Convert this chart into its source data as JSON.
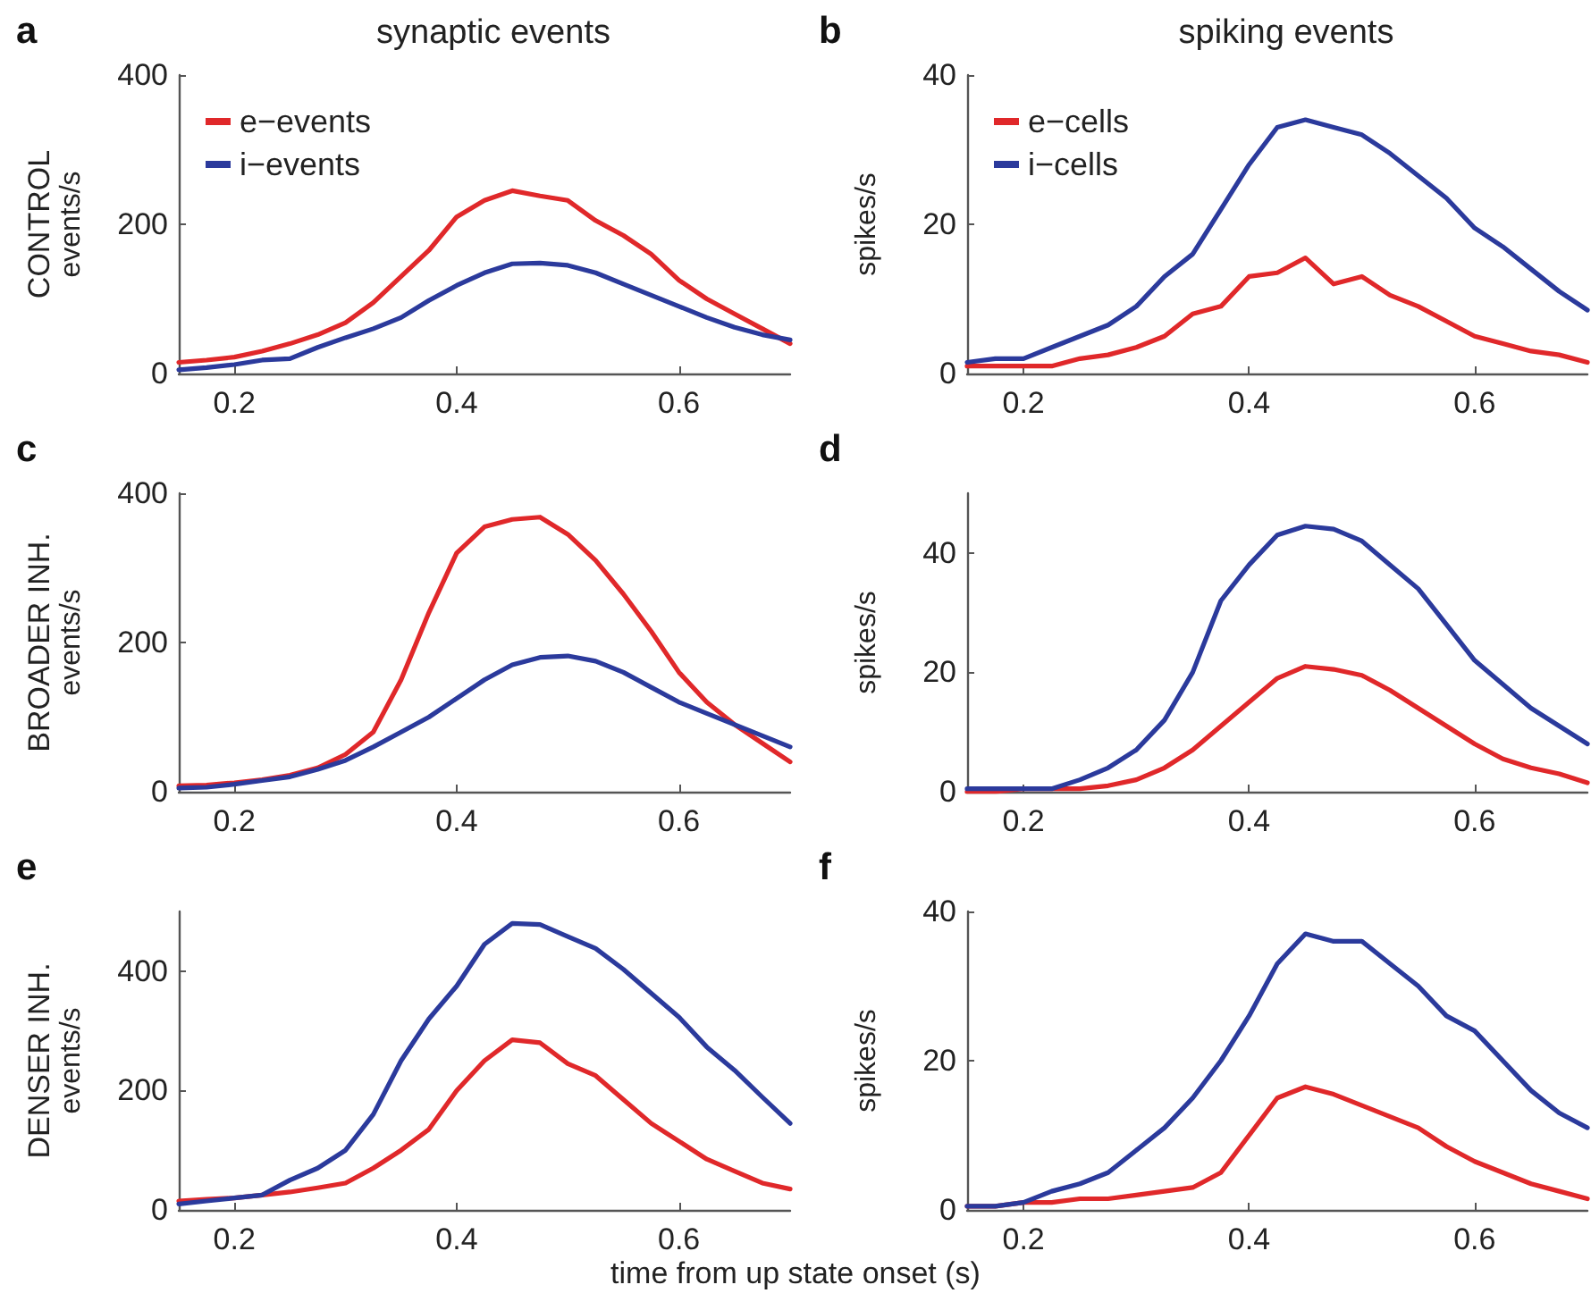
{
  "chart_data": [
    {
      "type": "line",
      "title": "a",
      "subtitle": "synaptic events",
      "annotations": [
        "CONTROL"
      ],
      "ylabel": "events/s",
      "xlim": [
        0.15,
        0.7
      ],
      "xticks": [
        0.2,
        0.4,
        0.6
      ],
      "ylim": [
        0,
        400
      ],
      "yticks": [
        0,
        200,
        400
      ],
      "legend": "top left",
      "marker": "none",
      "grid": false,
      "x": [
        0.15,
        0.175,
        0.2,
        0.225,
        0.25,
        0.275,
        0.3,
        0.325,
        0.35,
        0.375,
        0.4,
        0.425,
        0.45,
        0.475,
        0.5,
        0.525,
        0.55,
        0.575,
        0.6,
        0.625,
        0.65,
        0.675,
        0.7
      ],
      "series": [
        {
          "name": "e−events",
          "color": "#e0282a",
          "values": [
            15,
            18,
            22,
            30,
            40,
            52,
            68,
            95,
            130,
            165,
            210,
            232,
            245,
            238,
            232,
            205,
            185,
            160,
            125,
            100,
            80,
            60,
            40
          ]
        },
        {
          "name": "i−events",
          "color": "#2b3a9c",
          "values": [
            5,
            8,
            12,
            18,
            20,
            35,
            48,
            60,
            75,
            98,
            118,
            135,
            147,
            148,
            145,
            135,
            120,
            105,
            90,
            75,
            62,
            52,
            45
          ]
        }
      ]
    },
    {
      "type": "line",
      "title": "b",
      "subtitle": "spiking events",
      "ylabel": "spikes/s",
      "xlim": [
        0.15,
        0.7
      ],
      "xticks": [
        0.2,
        0.4,
        0.6
      ],
      "ylim": [
        0,
        40
      ],
      "yticks": [
        0,
        20,
        40
      ],
      "legend": "top left",
      "marker": "none",
      "grid": false,
      "x": [
        0.15,
        0.175,
        0.2,
        0.225,
        0.25,
        0.275,
        0.3,
        0.325,
        0.35,
        0.375,
        0.4,
        0.425,
        0.45,
        0.475,
        0.5,
        0.525,
        0.55,
        0.575,
        0.6,
        0.625,
        0.65,
        0.675,
        0.7
      ],
      "series": [
        {
          "name": "e−cells",
          "color": "#e0282a",
          "values": [
            1,
            1,
            1,
            1,
            2,
            2.5,
            3.5,
            5,
            8,
            9,
            13,
            13.5,
            15.5,
            12,
            13,
            10.5,
            9,
            7,
            5,
            4,
            3,
            2.5,
            1.5
          ]
        },
        {
          "name": "i−cells",
          "color": "#2b3a9c",
          "values": [
            1.5,
            2,
            2,
            3.5,
            5,
            6.5,
            9,
            13,
            16,
            22,
            28,
            33,
            34,
            33,
            32,
            29.5,
            26.5,
            23.5,
            19.5,
            17,
            14,
            11,
            8.5
          ]
        }
      ]
    },
    {
      "type": "line",
      "title": "c",
      "annotations": [
        "BROADER INH."
      ],
      "ylabel": "events/s",
      "xlim": [
        0.15,
        0.7
      ],
      "xticks": [
        0.2,
        0.4,
        0.6
      ],
      "ylim": [
        0,
        400
      ],
      "yticks": [
        0,
        200,
        400
      ],
      "marker": "none",
      "grid": false,
      "x": [
        0.15,
        0.175,
        0.2,
        0.225,
        0.25,
        0.275,
        0.3,
        0.325,
        0.35,
        0.375,
        0.4,
        0.425,
        0.45,
        0.475,
        0.5,
        0.525,
        0.55,
        0.575,
        0.6,
        0.625,
        0.65,
        0.675,
        0.7
      ],
      "series": [
        {
          "color": "#e0282a",
          "values": [
            8,
            9,
            12,
            16,
            22,
            32,
            50,
            80,
            150,
            240,
            320,
            355,
            365,
            368,
            345,
            310,
            265,
            215,
            160,
            120,
            90,
            65,
            40
          ]
        },
        {
          "color": "#2b3a9c",
          "values": [
            5,
            6,
            10,
            15,
            20,
            30,
            42,
            60,
            80,
            100,
            125,
            150,
            170,
            180,
            182,
            175,
            160,
            140,
            120,
            105,
            90,
            75,
            60
          ]
        }
      ]
    },
    {
      "type": "line",
      "title": "d",
      "ylabel": "spikes/s",
      "xlim": [
        0.15,
        0.7
      ],
      "xticks": [
        0.2,
        0.4,
        0.6
      ],
      "ylim": [
        0,
        50
      ],
      "yticks": [
        0,
        20,
        40
      ],
      "marker": "none",
      "grid": false,
      "x": [
        0.15,
        0.175,
        0.2,
        0.225,
        0.25,
        0.275,
        0.3,
        0.325,
        0.35,
        0.375,
        0.4,
        0.425,
        0.45,
        0.475,
        0.5,
        0.525,
        0.55,
        0.575,
        0.6,
        0.625,
        0.65,
        0.675,
        0.7
      ],
      "series": [
        {
          "color": "#e0282a",
          "values": [
            0,
            0,
            0.5,
            0.5,
            0.5,
            1,
            2,
            4,
            7,
            11,
            15,
            19,
            21,
            20.5,
            19.5,
            17,
            14,
            11,
            8,
            5.5,
            4,
            3,
            1.5
          ]
        },
        {
          "color": "#2b3a9c",
          "values": [
            0.5,
            0.5,
            0.5,
            0.5,
            2,
            4,
            7,
            12,
            20,
            32,
            38,
            43,
            44.5,
            44,
            42,
            38,
            34,
            28,
            22,
            18,
            14,
            11,
            8
          ]
        }
      ]
    },
    {
      "type": "line",
      "title": "e",
      "annotations": [
        "DENSER INH."
      ],
      "ylabel": "events/s",
      "xlabel": "time from up state onset (s)",
      "xlim": [
        0.15,
        0.7
      ],
      "xticks": [
        0.2,
        0.4,
        0.6
      ],
      "ylim": [
        0,
        500
      ],
      "yticks": [
        0,
        200,
        400
      ],
      "marker": "none",
      "grid": false,
      "x": [
        0.15,
        0.175,
        0.2,
        0.225,
        0.25,
        0.275,
        0.3,
        0.325,
        0.35,
        0.375,
        0.4,
        0.425,
        0.45,
        0.475,
        0.5,
        0.525,
        0.55,
        0.575,
        0.6,
        0.625,
        0.65,
        0.675,
        0.7
      ],
      "series": [
        {
          "color": "#e0282a",
          "values": [
            15,
            18,
            20,
            25,
            30,
            37,
            45,
            70,
            100,
            135,
            200,
            250,
            285,
            280,
            245,
            225,
            185,
            145,
            115,
            85,
            65,
            45,
            35
          ]
        },
        {
          "color": "#2b3a9c",
          "values": [
            10,
            15,
            20,
            25,
            50,
            70,
            100,
            160,
            250,
            320,
            375,
            445,
            480,
            478,
            458,
            438,
            403,
            363,
            323,
            273,
            234,
            189,
            145
          ]
        }
      ]
    },
    {
      "type": "line",
      "title": "f",
      "ylabel": "spikes/s",
      "xlim": [
        0.15,
        0.7
      ],
      "xticks": [
        0.2,
        0.4,
        0.6
      ],
      "ylim": [
        0,
        40
      ],
      "yticks": [
        0,
        20,
        40
      ],
      "marker": "none",
      "grid": false,
      "x": [
        0.15,
        0.175,
        0.2,
        0.225,
        0.25,
        0.275,
        0.3,
        0.325,
        0.35,
        0.375,
        0.4,
        0.425,
        0.45,
        0.475,
        0.5,
        0.525,
        0.55,
        0.575,
        0.6,
        0.625,
        0.65,
        0.675,
        0.7
      ],
      "series": [
        {
          "color": "#e0282a",
          "values": [
            0.5,
            0.5,
            1,
            1,
            1.5,
            1.5,
            2,
            2.5,
            3,
            5,
            10,
            15,
            16.5,
            15.5,
            14,
            12.5,
            11,
            8.5,
            6.5,
            5,
            3.5,
            2.5,
            1.5
          ]
        },
        {
          "color": "#2b3a9c",
          "values": [
            0.5,
            0.5,
            1,
            2.5,
            3.5,
            5,
            8,
            11,
            15,
            20,
            26,
            33,
            37,
            36,
            36,
            33,
            30,
            26,
            24,
            20,
            16,
            13,
            11
          ]
        }
      ]
    }
  ]
}
